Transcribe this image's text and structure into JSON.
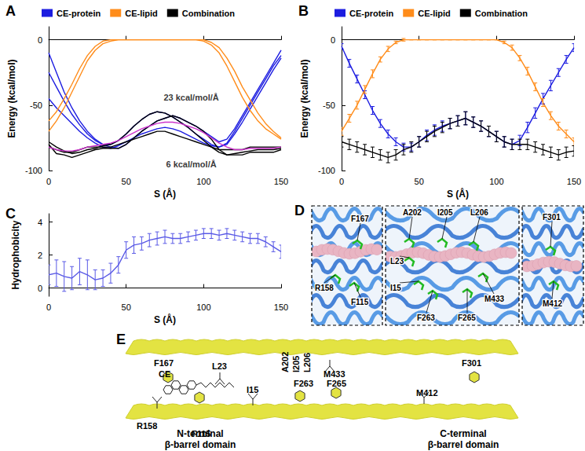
{
  "chart_data": [
    {
      "title": "A",
      "type": "line",
      "x": [
        0,
        5,
        10,
        15,
        20,
        25,
        30,
        35,
        40,
        45,
        50,
        55,
        60,
        65,
        70,
        75,
        80,
        85,
        90,
        95,
        100,
        105,
        110,
        115,
        120,
        125,
        130,
        135,
        140,
        145,
        150
      ],
      "x_label": "S (Å)",
      "y_label": "Energy (kcal/mol)",
      "xlim": [
        0,
        150
      ],
      "xticks": [
        0,
        50,
        100,
        150
      ],
      "ylim": [
        -100,
        10
      ],
      "yticks": [
        -100,
        -50,
        0
      ],
      "grid": false,
      "legend": "top",
      "series": [
        {
          "name": "CE-protein",
          "color": "#1c1ce0",
          "values": [
            -10,
            -25,
            -40,
            -52,
            -62,
            -70,
            -76,
            -80,
            -82,
            -83,
            -80,
            -75,
            -70,
            -66,
            -62,
            -60,
            -58,
            -60,
            -63,
            -66,
            -70,
            -74,
            -78,
            -76,
            -68,
            -58,
            -48,
            -38,
            -28,
            -18,
            -8
          ]
        },
        {
          "name": "CE-protein",
          "color": "#1c1ce0",
          "values": [
            -45,
            -52,
            -58,
            -64,
            -70,
            -75,
            -79,
            -82,
            -83,
            -81,
            -78,
            -75,
            -72,
            -70,
            -68,
            -67,
            -68,
            -70,
            -73,
            -76,
            -79,
            -81,
            -82,
            -80,
            -72,
            -63,
            -53,
            -43,
            -33,
            -23,
            -14
          ]
        },
        {
          "name": "CE-protein",
          "color": "#1c1ce0",
          "values": [
            -25,
            -36,
            -47,
            -57,
            -65,
            -72,
            -77,
            -80,
            -80,
            -77,
            -72,
            -66,
            -61,
            -57,
            -55,
            -56,
            -59,
            -63,
            -67,
            -72,
            -76,
            -80,
            -82,
            -79,
            -70,
            -60,
            -50,
            -40,
            -30,
            -20,
            -12
          ]
        },
        {
          "name": "CE-lipid",
          "color": "#ff8c1a",
          "values": [
            -70,
            -62,
            -52,
            -40,
            -28,
            -16,
            -8,
            -3,
            -1,
            0,
            0,
            0,
            0,
            0,
            0,
            0,
            0,
            0,
            0,
            0,
            0,
            -2,
            -6,
            -14,
            -24,
            -36,
            -46,
            -56,
            -64,
            -70,
            -75
          ]
        },
        {
          "name": "CE-lipid",
          "color": "#ff8c1a",
          "values": [
            -62,
            -55,
            -45,
            -34,
            -22,
            -12,
            -5,
            -1,
            0,
            0,
            0,
            0,
            0,
            0,
            0,
            0,
            0,
            0,
            0,
            0,
            -1,
            -4,
            -10,
            -20,
            -32,
            -44,
            -54,
            -62,
            -68,
            -72,
            -76
          ]
        },
        {
          "name": "Combination",
          "color": "#000000",
          "values": [
            -80,
            -87,
            -88,
            -90,
            -88,
            -86,
            -84,
            -83,
            -83,
            -83,
            -80,
            -75,
            -70,
            -66,
            -62,
            -60,
            -58,
            -60,
            -63,
            -66,
            -70,
            -76,
            -84,
            -88,
            -88,
            -88,
            -86,
            -86,
            -86,
            -86,
            -84
          ]
        },
        {
          "name": "Combination",
          "color": "#000000",
          "values": [
            -82,
            -84,
            -86,
            -86,
            -84,
            -82,
            -82,
            -82,
            -82,
            -80,
            -78,
            -76,
            -74,
            -72,
            -70,
            -70,
            -72,
            -74,
            -76,
            -78,
            -80,
            -82,
            -84,
            -84,
            -84,
            -84,
            -82,
            -82,
            -82,
            -82,
            -82
          ]
        },
        {
          "name": "Combination",
          "color": "#000000",
          "values": [
            -78,
            -82,
            -85,
            -87,
            -86,
            -84,
            -83,
            -81,
            -80,
            -77,
            -72,
            -66,
            -61,
            -57,
            -55,
            -56,
            -59,
            -63,
            -67,
            -72,
            -77,
            -82,
            -86,
            -88,
            -87,
            -86,
            -85,
            -84,
            -84,
            -84,
            -83
          ]
        },
        {
          "color": "#cc33cc",
          "values": [
            -82,
            -84,
            -85,
            -85,
            -84,
            -82,
            -81,
            -80,
            -79,
            -77,
            -74,
            -71,
            -68,
            -66,
            -64,
            -63,
            -63,
            -64,
            -66,
            -68,
            -71,
            -75,
            -79,
            -82,
            -84,
            -84,
            -83,
            -83,
            -83,
            -83,
            -82
          ]
        }
      ],
      "annotations": [
        {
          "text": "23 kcal/mol/Å",
          "x": 92,
          "y": -44
        },
        {
          "text": "6 kcal/mol/Å",
          "x": 92,
          "y": -95
        }
      ]
    },
    {
      "title": "B",
      "type": "line",
      "x": [
        0,
        5,
        10,
        15,
        20,
        25,
        30,
        35,
        40,
        45,
        50,
        55,
        60,
        65,
        70,
        75,
        80,
        85,
        90,
        95,
        100,
        105,
        110,
        115,
        120,
        125,
        130,
        135,
        140,
        145,
        150
      ],
      "x_label": "S (Å)",
      "y_label": "Energy (kcal/mol)",
      "xlim": [
        0,
        150
      ],
      "xticks": [
        0,
        50,
        100,
        150
      ],
      "ylim": [
        -100,
        10
      ],
      "yticks": [
        -100,
        -50,
        0
      ],
      "grid": false,
      "legend": "top",
      "series": [
        {
          "name": "CE-protein",
          "color": "#1c1ce0",
          "values": [
            -5,
            -18,
            -30,
            -42,
            -54,
            -64,
            -72,
            -78,
            -82,
            -82,
            -78,
            -73,
            -69,
            -66,
            -64,
            -62,
            -60,
            -63,
            -66,
            -70,
            -74,
            -78,
            -80,
            -77,
            -67,
            -56,
            -45,
            -35,
            -25,
            -15,
            -6
          ],
          "errors": [
            2,
            3,
            3,
            3,
            3,
            3,
            3,
            3,
            3,
            3,
            4,
            4,
            4,
            4,
            4,
            4,
            5,
            4,
            4,
            4,
            4,
            4,
            4,
            4,
            4,
            4,
            4,
            4,
            3,
            3,
            3
          ]
        },
        {
          "name": "CE-lipid",
          "color": "#ff8c1a",
          "values": [
            -70,
            -60,
            -50,
            -38,
            -26,
            -15,
            -7,
            -2,
            0,
            0,
            0,
            0,
            0,
            0,
            0,
            0,
            0,
            0,
            0,
            0,
            0,
            -2,
            -6,
            -14,
            -24,
            -36,
            -48,
            -58,
            -66,
            -72,
            -78
          ],
          "errors": [
            3,
            3,
            3,
            3,
            3,
            2,
            2,
            1,
            1,
            0,
            0,
            0,
            0,
            0,
            0,
            0,
            0,
            0,
            0,
            0,
            0,
            1,
            2,
            2,
            3,
            3,
            3,
            3,
            3,
            3,
            3
          ]
        },
        {
          "name": "Combination",
          "color": "#000000",
          "values": [
            -78,
            -80,
            -82,
            -84,
            -86,
            -88,
            -90,
            -88,
            -84,
            -82,
            -78,
            -74,
            -70,
            -67,
            -64,
            -62,
            -60,
            -63,
            -66,
            -70,
            -74,
            -78,
            -80,
            -80,
            -80,
            -82,
            -84,
            -86,
            -88,
            -86,
            -85
          ],
          "errors": [
            4,
            4,
            4,
            4,
            4,
            4,
            4,
            4,
            4,
            4,
            4,
            4,
            4,
            4,
            4,
            4,
            5,
            4,
            4,
            4,
            4,
            4,
            4,
            4,
            4,
            4,
            4,
            4,
            4,
            4,
            4
          ]
        }
      ]
    },
    {
      "title": "C",
      "type": "line",
      "x": [
        0,
        5,
        10,
        15,
        20,
        25,
        30,
        35,
        40,
        45,
        50,
        55,
        60,
        65,
        70,
        75,
        80,
        85,
        90,
        95,
        100,
        105,
        110,
        115,
        120,
        125,
        130,
        135,
        140,
        145,
        150
      ],
      "x_label": "S (Å)",
      "y_label": "Hydrophobicity",
      "xlim": [
        0,
        150
      ],
      "xticks": [
        0,
        50,
        100,
        150
      ],
      "ylim": [
        -0.5,
        4.5
      ],
      "yticks": [
        0,
        2,
        4
      ],
      "grid": false,
      "series": [
        {
          "color": "#5a5ae6",
          "values": [
            0.8,
            0.9,
            0.7,
            0.6,
            1.0,
            0.8,
            0.5,
            0.6,
            0.9,
            1.4,
            2.3,
            2.6,
            2.7,
            2.9,
            3.0,
            3.1,
            3.0,
            3.0,
            3.1,
            3.2,
            3.3,
            3.3,
            3.2,
            3.3,
            3.2,
            3.1,
            3.0,
            3.0,
            2.8,
            2.5,
            2.2
          ],
          "errors": [
            0.6,
            0.8,
            0.9,
            0.7,
            0.8,
            0.9,
            0.6,
            0.5,
            0.6,
            0.5,
            0.5,
            0.5,
            0.4,
            0.4,
            0.4,
            0.4,
            0.3,
            0.3,
            0.3,
            0.3,
            0.3,
            0.3,
            0.3,
            0.3,
            0.3,
            0.3,
            0.3,
            0.3,
            0.3,
            0.3,
            0.4
          ]
        }
      ]
    }
  ],
  "panel_d": {
    "label": "D",
    "boxes": [
      [
        "F167",
        "R158",
        "F115"
      ],
      [
        "A202",
        "I205",
        "L206",
        "L23",
        "I15",
        "F263",
        "F265",
        "M433"
      ],
      [
        "F301",
        "M412"
      ]
    ]
  },
  "panel_e": {
    "label": "E",
    "ligand": "CE",
    "top_residues": [
      "F167",
      "L23",
      "A202",
      "I205",
      "L206",
      "M433",
      "F301"
    ],
    "bottom_residues": [
      "R158",
      "F115",
      "I15",
      "F263",
      "F265",
      "M412"
    ],
    "domains": [
      [
        "N-terminal",
        "β-barrel domain"
      ],
      [
        "C-terminal",
        "β-barrel domain"
      ]
    ]
  }
}
